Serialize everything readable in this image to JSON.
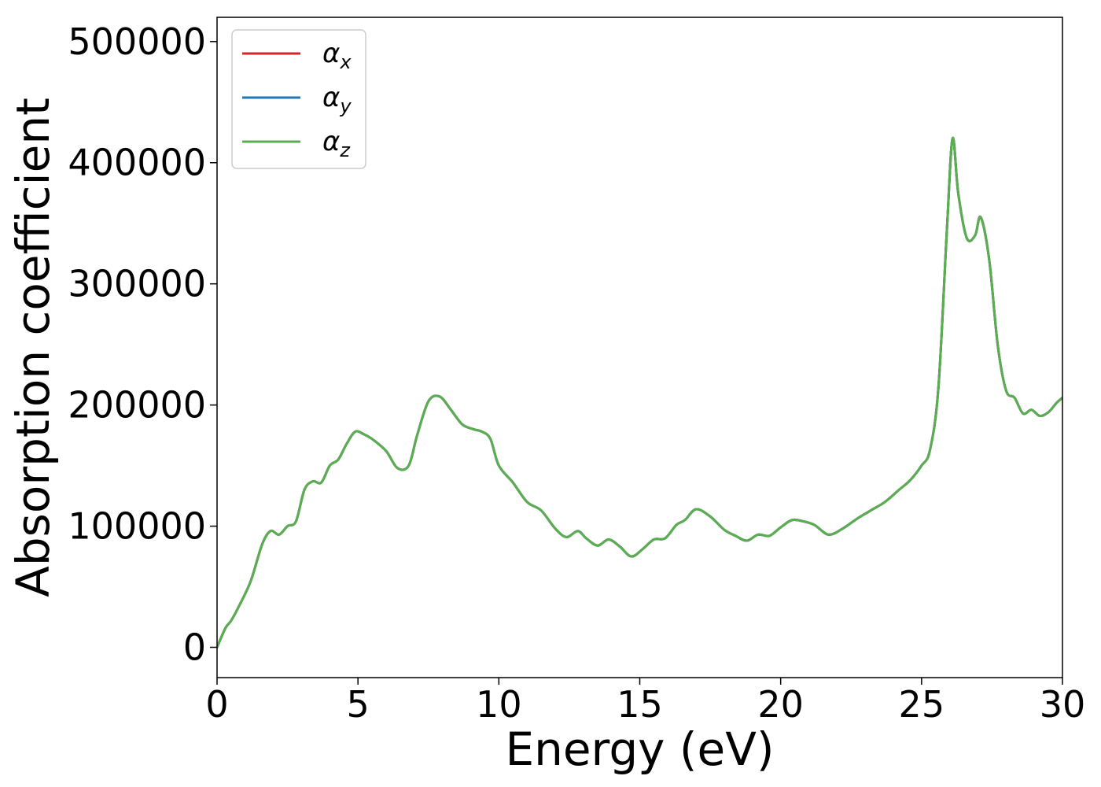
{
  "chart_data": {
    "type": "line",
    "xlabel": "Energy (eV)",
    "ylabel": "Absorption coefficient",
    "xlim": [
      0,
      30
    ],
    "ylim": [
      -25000,
      520000
    ],
    "xticks": [
      0,
      5,
      10,
      15,
      20,
      25,
      30
    ],
    "xtick_labels": [
      "0",
      "5",
      "10",
      "15",
      "20",
      "25",
      "30"
    ],
    "yticks": [
      0,
      100000,
      200000,
      300000,
      400000,
      500000
    ],
    "ytick_labels": [
      "0",
      "100000",
      "200000",
      "300000",
      "400000",
      "500000"
    ],
    "grid": false,
    "legend_position": "top-left",
    "x": [
      0,
      0.3,
      0.5,
      0.8,
      1.2,
      1.6,
      1.9,
      2.2,
      2.5,
      2.8,
      3.1,
      3.4,
      3.7,
      4.0,
      4.3,
      4.6,
      4.9,
      5.2,
      5.5,
      6.0,
      6.4,
      6.8,
      7.1,
      7.5,
      7.9,
      8.3,
      8.7,
      9.1,
      9.4,
      9.7,
      10.0,
      10.5,
      11.0,
      11.5,
      12.0,
      12.4,
      12.8,
      13.1,
      13.5,
      13.9,
      14.3,
      14.7,
      15.1,
      15.5,
      15.9,
      16.3,
      16.6,
      17.0,
      17.5,
      18.0,
      18.4,
      18.8,
      19.2,
      19.6,
      20.0,
      20.4,
      20.8,
      21.2,
      21.7,
      22.2,
      22.7,
      23.2,
      23.7,
      24.2,
      24.6,
      25.0,
      25.3,
      25.6,
      25.9,
      26.1,
      26.3,
      26.6,
      26.9,
      27.1,
      27.4,
      27.7,
      28.0,
      28.3,
      28.6,
      28.9,
      29.2,
      29.5,
      29.8,
      30.0
    ],
    "series": [
      {
        "name": "α_x",
        "color": "#d62728",
        "values": [
          0,
          16000,
          22000,
          35000,
          55000,
          85000,
          96000,
          93000,
          100000,
          104000,
          130000,
          137000,
          136000,
          150000,
          155000,
          168000,
          178000,
          176000,
          172000,
          162000,
          148000,
          150000,
          175000,
          203000,
          207000,
          196000,
          184000,
          180000,
          178000,
          172000,
          150000,
          136000,
          120000,
          113000,
          98000,
          91000,
          96000,
          90000,
          84000,
          89000,
          83000,
          75000,
          81000,
          89000,
          90000,
          101000,
          105000,
          114000,
          108000,
          97000,
          92000,
          88000,
          93000,
          92000,
          99000,
          105000,
          104000,
          101000,
          93000,
          98000,
          106000,
          113000,
          120000,
          130000,
          138000,
          150000,
          163000,
          215000,
          345000,
          420000,
          375000,
          338000,
          340000,
          355000,
          320000,
          250000,
          212000,
          206000,
          193000,
          196000,
          191000,
          194000,
          202000,
          206000
        ]
      },
      {
        "name": "α_y",
        "color": "#1f77b4",
        "values": [
          0,
          16000,
          22000,
          35000,
          55000,
          85000,
          96000,
          93000,
          100000,
          104000,
          130000,
          137000,
          136000,
          150000,
          155000,
          168000,
          178000,
          176000,
          172000,
          162000,
          148000,
          150000,
          175000,
          203000,
          207000,
          196000,
          184000,
          180000,
          178000,
          172000,
          150000,
          136000,
          120000,
          113000,
          98000,
          91000,
          96000,
          90000,
          84000,
          89000,
          83000,
          75000,
          81000,
          89000,
          90000,
          101000,
          105000,
          114000,
          108000,
          97000,
          92000,
          88000,
          93000,
          92000,
          99000,
          105000,
          104000,
          101000,
          93000,
          98000,
          106000,
          113000,
          120000,
          130000,
          138000,
          150000,
          163000,
          215000,
          345000,
          420000,
          375000,
          338000,
          340000,
          355000,
          320000,
          250000,
          212000,
          206000,
          193000,
          196000,
          191000,
          194000,
          202000,
          206000
        ]
      },
      {
        "name": "α_z",
        "color": "#5aae4f",
        "values": [
          0,
          16000,
          22000,
          35000,
          55000,
          85000,
          96000,
          93000,
          100000,
          104000,
          130000,
          137000,
          136000,
          150000,
          155000,
          168000,
          178000,
          176000,
          172000,
          162000,
          148000,
          150000,
          175000,
          203000,
          207000,
          196000,
          184000,
          180000,
          178000,
          172000,
          150000,
          136000,
          120000,
          113000,
          98000,
          91000,
          96000,
          90000,
          84000,
          89000,
          83000,
          75000,
          81000,
          89000,
          90000,
          101000,
          105000,
          114000,
          108000,
          97000,
          92000,
          88000,
          93000,
          92000,
          99000,
          105000,
          104000,
          101000,
          93000,
          98000,
          106000,
          113000,
          120000,
          130000,
          138000,
          150000,
          163000,
          215000,
          345000,
          420000,
          375000,
          338000,
          340000,
          355000,
          320000,
          250000,
          212000,
          206000,
          193000,
          196000,
          191000,
          194000,
          202000,
          206000
        ]
      }
    ],
    "legend": [
      {
        "symbol": "α",
        "sub": "x",
        "color": "#d62728"
      },
      {
        "symbol": "α",
        "sub": "y",
        "color": "#1f77b4"
      },
      {
        "symbol": "α",
        "sub": "z",
        "color": "#5aae4f"
      }
    ]
  }
}
